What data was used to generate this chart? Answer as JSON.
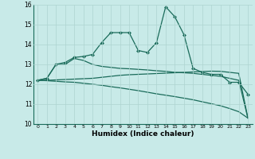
{
  "xlabel": "Humidex (Indice chaleur)",
  "bg_color": "#c8eae8",
  "grid_color": "#aed4d0",
  "line_color": "#1a6b5a",
  "xlim": [
    -0.5,
    23.5
  ],
  "ylim": [
    10,
    16
  ],
  "xticks": [
    0,
    1,
    2,
    3,
    4,
    5,
    6,
    7,
    8,
    9,
    10,
    11,
    12,
    13,
    14,
    15,
    16,
    17,
    18,
    19,
    20,
    21,
    22,
    23
  ],
  "yticks": [
    10,
    11,
    12,
    13,
    14,
    15,
    16
  ],
  "series": [
    {
      "x": [
        0,
        1,
        2,
        3,
        4,
        5,
        6,
        7,
        8,
        9,
        10,
        11,
        12,
        13,
        14,
        15,
        16,
        17,
        18,
        19,
        20,
        21,
        22,
        23
      ],
      "y": [
        12.2,
        12.3,
        13.0,
        13.1,
        13.35,
        13.4,
        13.5,
        14.1,
        14.6,
        14.6,
        14.6,
        13.7,
        13.6,
        14.1,
        15.9,
        15.4,
        14.5,
        12.8,
        12.6,
        12.5,
        12.5,
        12.1,
        12.1,
        11.5
      ],
      "marker": "D",
      "markersize": 2.0,
      "linewidth": 0.9,
      "has_marker": true
    },
    {
      "x": [
        0,
        1,
        2,
        3,
        4,
        5,
        6,
        7,
        8,
        9,
        10,
        11,
        12,
        13,
        14,
        15,
        16,
        17,
        18,
        19,
        20,
        21,
        22,
        23
      ],
      "y": [
        12.2,
        12.3,
        13.0,
        13.0,
        13.3,
        13.2,
        13.0,
        12.9,
        12.85,
        12.8,
        12.78,
        12.75,
        12.72,
        12.68,
        12.65,
        12.6,
        12.58,
        12.55,
        12.5,
        12.45,
        12.4,
        12.3,
        12.2,
        10.3
      ],
      "marker": "D",
      "markersize": 0,
      "linewidth": 0.9,
      "has_marker": false
    },
    {
      "x": [
        0,
        1,
        2,
        3,
        4,
        5,
        6,
        7,
        8,
        9,
        10,
        11,
        12,
        13,
        14,
        15,
        16,
        17,
        18,
        19,
        20,
        21,
        22,
        23
      ],
      "y": [
        12.2,
        12.2,
        12.22,
        12.24,
        12.26,
        12.28,
        12.3,
        12.35,
        12.4,
        12.45,
        12.48,
        12.5,
        12.52,
        12.54,
        12.56,
        12.58,
        12.6,
        12.62,
        12.64,
        12.66,
        12.65,
        12.6,
        12.55,
        10.3
      ],
      "marker": "D",
      "markersize": 0,
      "linewidth": 0.9,
      "has_marker": false
    },
    {
      "x": [
        0,
        1,
        2,
        3,
        4,
        5,
        6,
        7,
        8,
        9,
        10,
        11,
        12,
        13,
        14,
        15,
        16,
        17,
        18,
        19,
        20,
        21,
        22,
        23
      ],
      "y": [
        12.2,
        12.18,
        12.15,
        12.12,
        12.1,
        12.05,
        12.0,
        11.95,
        11.88,
        11.82,
        11.75,
        11.68,
        11.6,
        11.52,
        11.45,
        11.38,
        11.3,
        11.22,
        11.12,
        11.02,
        10.92,
        10.78,
        10.62,
        10.3
      ],
      "marker": "D",
      "markersize": 0,
      "linewidth": 0.9,
      "has_marker": false
    }
  ]
}
